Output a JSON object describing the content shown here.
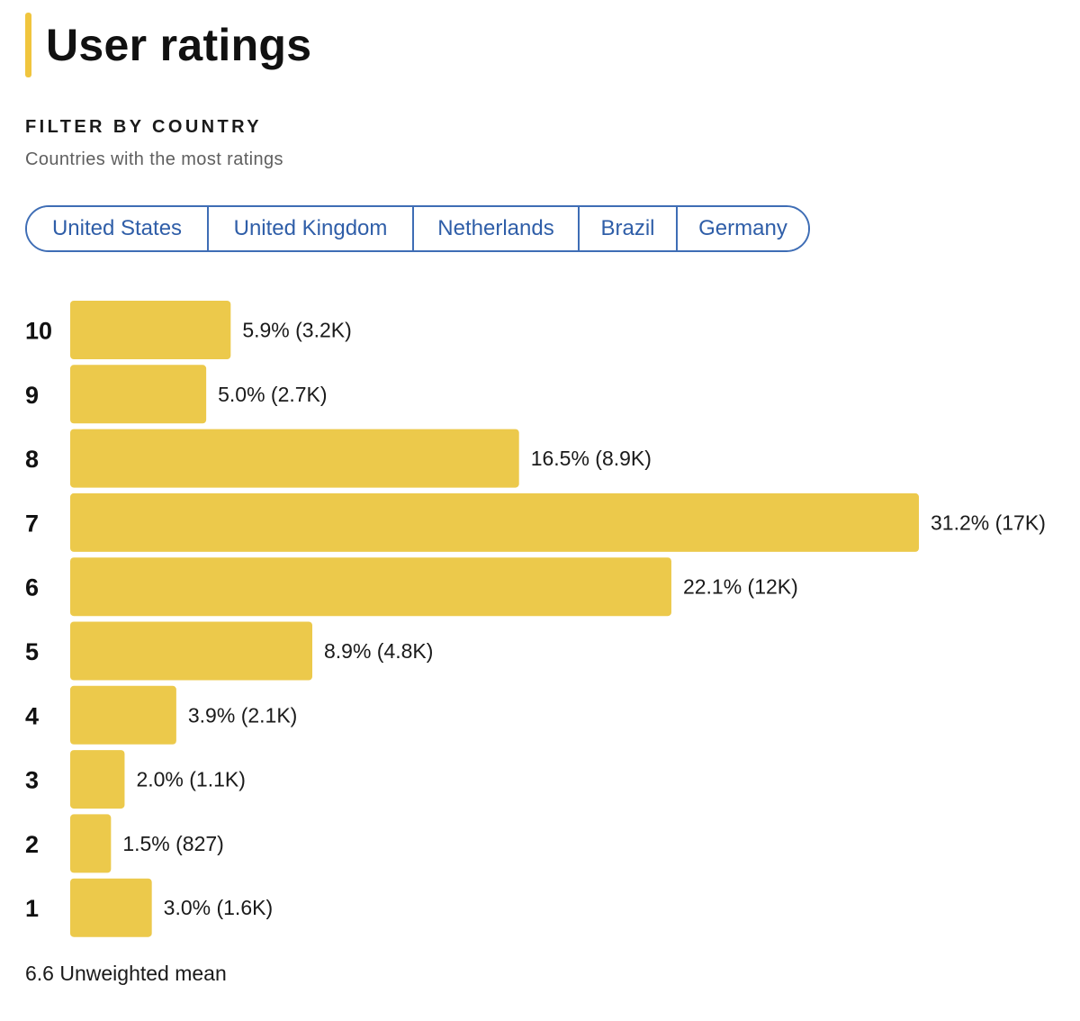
{
  "header": {
    "title": "User ratings"
  },
  "filter": {
    "heading": "FILTER BY COUNTRY",
    "subtitle": "Countries with the most ratings",
    "countries": [
      "United States",
      "United Kingdom",
      "Netherlands",
      "Brazil",
      "Germany"
    ]
  },
  "colors": {
    "bar": "#ecc94b",
    "accent": "#f0c53e",
    "chip": "#3e6db5"
  },
  "chart_data": {
    "type": "bar",
    "orientation": "horizontal",
    "title": "User ratings",
    "xlabel": "",
    "ylabel": "",
    "categories": [
      "10",
      "9",
      "8",
      "7",
      "6",
      "5",
      "4",
      "3",
      "2",
      "1"
    ],
    "values": [
      5.9,
      5.0,
      16.5,
      31.2,
      22.1,
      8.9,
      3.9,
      2.0,
      1.5,
      3.0
    ],
    "labels": [
      "5.9% (3.2K)",
      "5.0% (2.7K)",
      "16.5% (8.9K)",
      "31.2% (17K)",
      "22.1% (12K)",
      "8.9% (4.8K)",
      "3.9% (2.1K)",
      "2.0% (1.1K)",
      "1.5% (827)",
      "3.0% (1.6K)"
    ],
    "xlim": [
      0,
      31.2
    ],
    "grid": false,
    "legend": "none"
  },
  "footer": {
    "mean_text": "6.6 Unweighted mean"
  }
}
